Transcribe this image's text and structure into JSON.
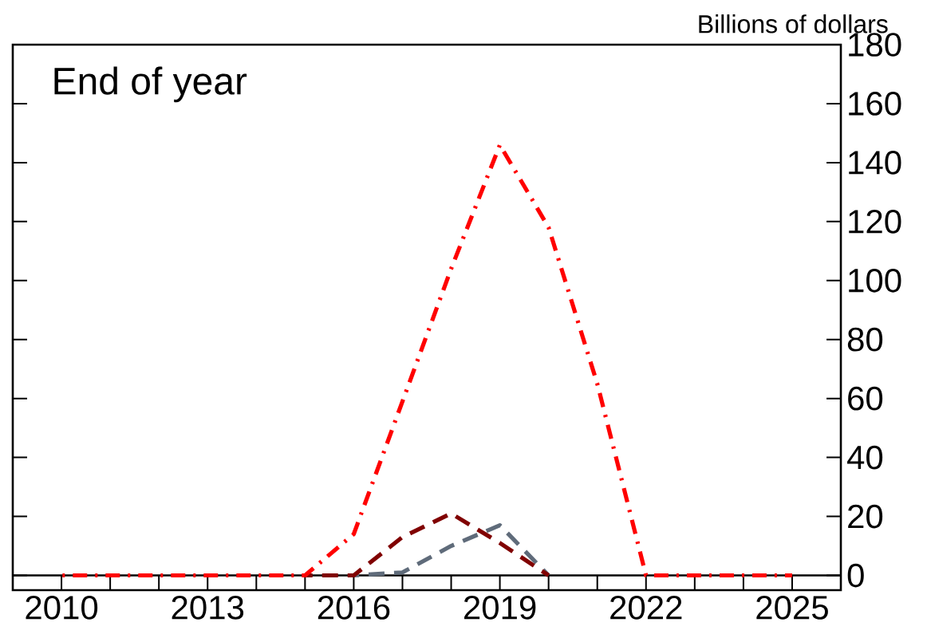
{
  "chart_data": {
    "type": "line",
    "title": "End of year",
    "ylabel": "Billions of dollars",
    "x": [
      2010,
      2011,
      2012,
      2013,
      2014,
      2015,
      2016,
      2017,
      2018,
      2019,
      2020,
      2021,
      2022,
      2023,
      2024,
      2025
    ],
    "series": [
      {
        "color": "#ff0000",
        "line_style": "dashdot",
        "values": [
          0,
          0,
          0,
          0,
          0,
          0,
          14,
          59,
          104,
          146,
          118,
          65,
          0,
          0,
          0,
          0
        ]
      },
      {
        "color": "#800000",
        "line_style": "dashed",
        "values": [
          null,
          null,
          null,
          null,
          null,
          0,
          0,
          13,
          21,
          11,
          0,
          null,
          null,
          null,
          null,
          null
        ]
      },
      {
        "color": "#5f6b7a",
        "line_style": "dashed",
        "values": [
          null,
          null,
          null,
          null,
          null,
          null,
          0,
          1,
          10,
          17,
          0,
          null,
          null,
          null,
          null,
          null
        ]
      }
    ],
    "xlim": [
      2009,
      2026
    ],
    "ylim": [
      -5,
      180
    ],
    "xticks": [
      2010,
      {
        "value": 2011,
        "label": null
      },
      {
        "value": 2012,
        "label": null
      },
      2013,
      {
        "value": 2014,
        "label": null
      },
      {
        "value": 2015,
        "label": null
      },
      2016,
      {
        "value": 2017,
        "label": null
      },
      {
        "value": 2018,
        "label": null
      },
      2019,
      {
        "value": 2020,
        "label": null
      },
      {
        "value": 2021,
        "label": null
      },
      2022,
      {
        "value": 2023,
        "label": null
      },
      {
        "value": 2024,
        "label": null
      },
      2025
    ],
    "yticks": [
      0,
      20,
      40,
      60,
      80,
      100,
      120,
      140,
      160,
      180
    ],
    "ref_lines": [
      {
        "axis": "y",
        "value": 0,
        "color": "#000000"
      }
    ],
    "grid": false,
    "marker": "none"
  }
}
